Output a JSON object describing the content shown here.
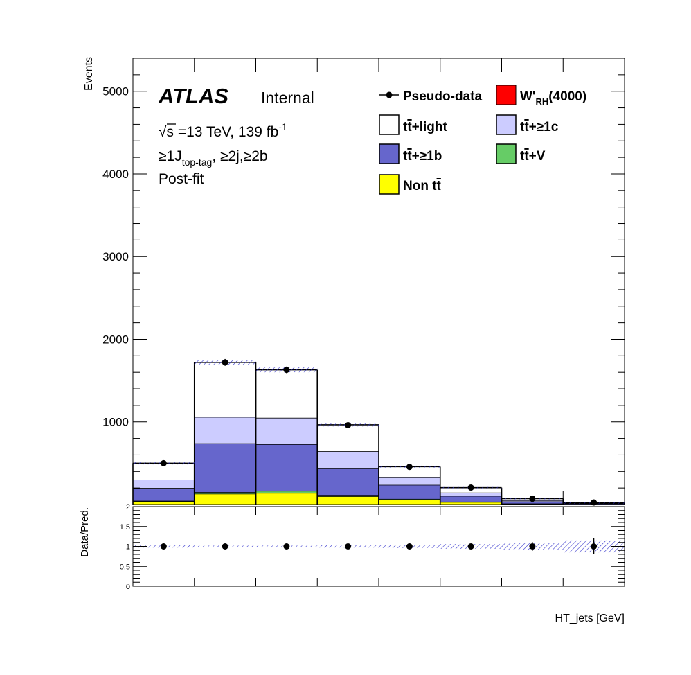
{
  "atlas_label": {
    "brand": "ATLAS",
    "status": "Internal",
    "sqrt": "√",
    "energy_text": "s =13 TeV, 139 fb",
    "lumi_exp": "-1",
    "sel_pre": "≥1J",
    "sel_sub": "top-tag",
    "sel_post": ", ≥2j,≥2b",
    "fit": "Post-fit"
  },
  "legend": {
    "pseudo_data": "Pseudo-data",
    "wprime_main": "W'",
    "wprime_sub": "RH",
    "wprime_mass": "(4000)",
    "ttlight_t": "t",
    "ttlight_tbar": "t",
    "ttlight_rest": "+light",
    "ttc_t": "t",
    "ttc_tbar": "t",
    "ttc_rest": "+≥1c",
    "ttb_t": "t",
    "ttb_tbar": "t",
    "ttb_rest": "+≥1b",
    "ttv_t": "t",
    "ttv_tbar": "t",
    "ttv_rest": "+V",
    "nontt_pre": "Non ",
    "nontt_t": "t",
    "nontt_tbar": "t"
  },
  "colors": {
    "ttlight": "#ffffff",
    "ttc": "#ccccff",
    "ttb": "#6666cc",
    "ttV": "#66cc66",
    "nontt": "#ffff00",
    "wprime": "#ff0000",
    "uncertainty": "#3333cc"
  },
  "chart_data": [
    {
      "type": "bar",
      "stacked": true,
      "ylabel": "Events",
      "xlabel": "",
      "ylim": [
        0,
        5400
      ],
      "yticks": [
        1000,
        2000,
        3000,
        4000,
        5000
      ],
      "ytick_labels": [
        "1000",
        "2000",
        "3000",
        "4000",
        "5000"
      ],
      "bins": 8,
      "series": [
        {
          "name": "Non tt̄",
          "values": [
            40,
            130,
            140,
            100,
            60,
            30,
            10,
            4
          ]
        },
        {
          "name": "tt̄+V",
          "values": [
            5,
            20,
            25,
            15,
            8,
            4,
            2,
            1
          ]
        },
        {
          "name": "tt̄+≥1b",
          "values": [
            155,
            590,
            565,
            320,
            170,
            70,
            25,
            8
          ]
        },
        {
          "name": "tt̄+≥1c",
          "values": [
            100,
            320,
            320,
            210,
            90,
            40,
            15,
            5
          ]
        },
        {
          "name": "tt̄+light",
          "values": [
            200,
            660,
            580,
            320,
            130,
            60,
            20,
            6
          ]
        },
        {
          "name": "W'RH(4000)",
          "values": [
            0,
            0,
            0,
            0,
            0,
            0,
            0,
            0
          ]
        }
      ],
      "uncertainty": [
        15,
        30,
        30,
        20,
        12,
        8,
        6,
        4
      ],
      "pseudo_data": [
        500,
        1720,
        1630,
        960,
        455,
        205,
        72,
        25
      ],
      "grid": false,
      "legend_position": "top-right"
    },
    {
      "type": "scatter",
      "ylabel": "Data/Pred.",
      "xlabel": "HT_jets [GeV]",
      "ylim": [
        0,
        2
      ],
      "yticks": [
        0,
        0.5,
        1,
        1.5,
        2
      ],
      "ytick_labels": [
        "0",
        "0.5",
        "1",
        "1.5",
        "2"
      ],
      "ratio": [
        1,
        1,
        1,
        1,
        1,
        1,
        1,
        1
      ],
      "ratio_err": [
        0.03,
        0.02,
        0.02,
        0.03,
        0.04,
        0.06,
        0.11,
        0.2
      ],
      "band": [
        0.03,
        0.02,
        0.02,
        0.03,
        0.04,
        0.06,
        0.09,
        0.15
      ],
      "grid": false
    }
  ]
}
